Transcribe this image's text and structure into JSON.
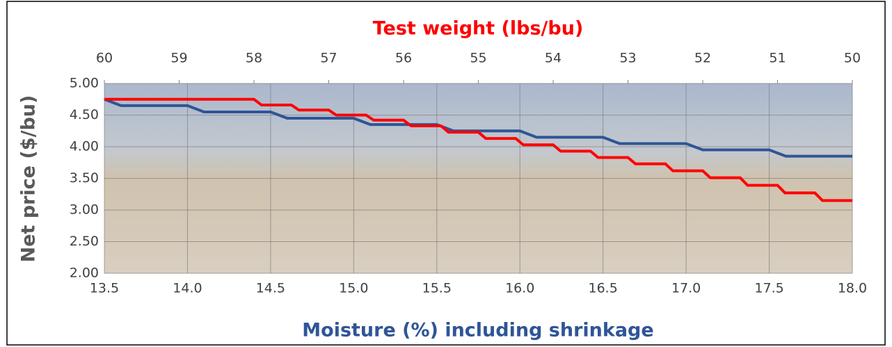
{
  "chart_data": {
    "type": "line",
    "x2label": "Test weight (lbs/bu)",
    "xlabel": "Moisture (%) including shrinkage",
    "ylabel": "Net price ($/bu)",
    "xlim": [
      13.5,
      18.0
    ],
    "xticks": [
      13.5,
      {
        "value": 14,
        "label": "14.0"
      },
      14.5,
      {
        "value": 15,
        "label": "15.0"
      },
      15.5,
      {
        "value": 16,
        "label": "16.0"
      },
      16.5,
      {
        "value": 17,
        "label": "17.0"
      },
      17.5,
      {
        "value": 18,
        "label": "18.0"
      }
    ],
    "x2lim": [
      60,
      50
    ],
    "x2ticks": [
      60,
      59,
      58,
      57,
      56,
      55,
      54,
      53,
      52,
      51,
      50
    ],
    "ylim": [
      2,
      5
    ],
    "yticks": [
      {
        "value": 2,
        "label": "2.00"
      },
      {
        "value": 2.5,
        "label": "2.50"
      },
      {
        "value": 3,
        "label": "3.00"
      },
      {
        "value": 3.5,
        "label": "3.50"
      },
      {
        "value": 4,
        "label": "4.00"
      },
      {
        "value": 4.5,
        "label": "4.50"
      },
      {
        "value": 5,
        "label": "5.00"
      }
    ],
    "grid": true,
    "series": [
      {
        "color": "#2f5597",
        "axis": "x",
        "x": [
          13.5,
          13.6,
          14.0,
          14.1,
          14.5,
          14.6,
          15.0,
          15.1,
          15.5,
          15.6,
          16.0,
          16.1,
          16.5,
          16.6,
          17.0,
          17.1,
          17.5,
          17.6,
          18.0
        ],
        "values": [
          4.75,
          4.65,
          4.65,
          4.55,
          4.55,
          4.45,
          4.45,
          4.35,
          4.35,
          4.25,
          4.25,
          4.15,
          4.15,
          4.05,
          4.05,
          3.95,
          3.95,
          3.85,
          3.85
        ]
      },
      {
        "color": "#ff0000",
        "axis": "x2",
        "x": [
          60,
          58.0,
          57.9,
          57.5,
          57.4,
          57.0,
          56.9,
          56.5,
          56.4,
          56.0,
          55.9,
          55.5,
          55.4,
          55.0,
          54.9,
          54.5,
          54.4,
          54.0,
          53.9,
          53.5,
          53.4,
          53.0,
          52.9,
          52.5,
          52.4,
          52.0,
          51.9,
          51.5,
          51.4,
          51.0,
          50.9,
          50.5,
          50.4,
          50
        ],
        "values": [
          4.75,
          4.75,
          4.66,
          4.66,
          4.58,
          4.58,
          4.5,
          4.5,
          4.42,
          4.42,
          4.33,
          4.33,
          4.23,
          4.23,
          4.13,
          4.13,
          4.03,
          4.03,
          3.93,
          3.93,
          3.83,
          3.83,
          3.73,
          3.73,
          3.62,
          3.62,
          3.51,
          3.51,
          3.39,
          3.39,
          3.27,
          3.27,
          3.15,
          3.15
        ]
      }
    ]
  }
}
